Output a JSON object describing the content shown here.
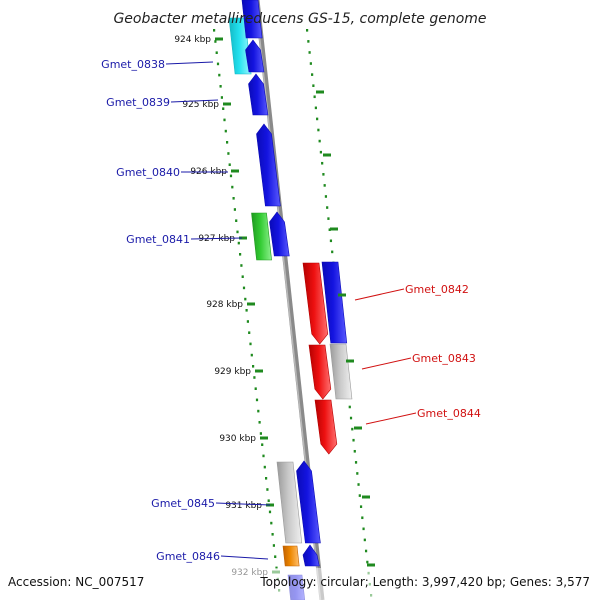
{
  "title": "Geobacter metallireducens GS-15, complete genome",
  "footer": {
    "accession": "Accession: NC_007517",
    "topology": "Topology: circular; Length: 3,997,420 bp; Genes: 3,577"
  },
  "colors": {
    "backbone": "#8a8a8a",
    "ticks": "#1f8a1f",
    "reverse_label": "#1a1aa8",
    "forward_label": "#d11111",
    "blue": "#1414e0",
    "cyan": "#22e0ee",
    "green": "#33cc33",
    "red": "#ee1111",
    "grey": "#c8c8c8",
    "orange": "#ee8800"
  },
  "kbp_labels": [
    "924 kbp",
    "925 kbp",
    "926 kbp",
    "927 kbp",
    "928 kbp",
    "929 kbp",
    "930 kbp",
    "931 kbp",
    "932 kbp"
  ],
  "gene_labels": [
    {
      "text": "Gmet_0838",
      "strand": "reverse"
    },
    {
      "text": "Gmet_0839",
      "strand": "reverse"
    },
    {
      "text": "Gmet_0840",
      "strand": "reverse"
    },
    {
      "text": "Gmet_0841",
      "strand": "reverse"
    },
    {
      "text": "Gmet_0842",
      "strand": "forward"
    },
    {
      "text": "Gmet_0843",
      "strand": "forward"
    },
    {
      "text": "Gmet_0844",
      "strand": "forward"
    },
    {
      "text": "Gmet_0845",
      "strand": "reverse"
    },
    {
      "text": "Gmet_0846",
      "strand": "reverse"
    }
  ],
  "features": [
    {
      "name": "cyan-feature",
      "color": "cyan"
    },
    {
      "name": "blue-feature",
      "color": "blue"
    },
    {
      "name": "green-feature",
      "color": "green"
    },
    {
      "name": "red-feature",
      "color": "red"
    },
    {
      "name": "grey-feature",
      "color": "grey"
    },
    {
      "name": "orange-feature",
      "color": "orange"
    }
  ]
}
